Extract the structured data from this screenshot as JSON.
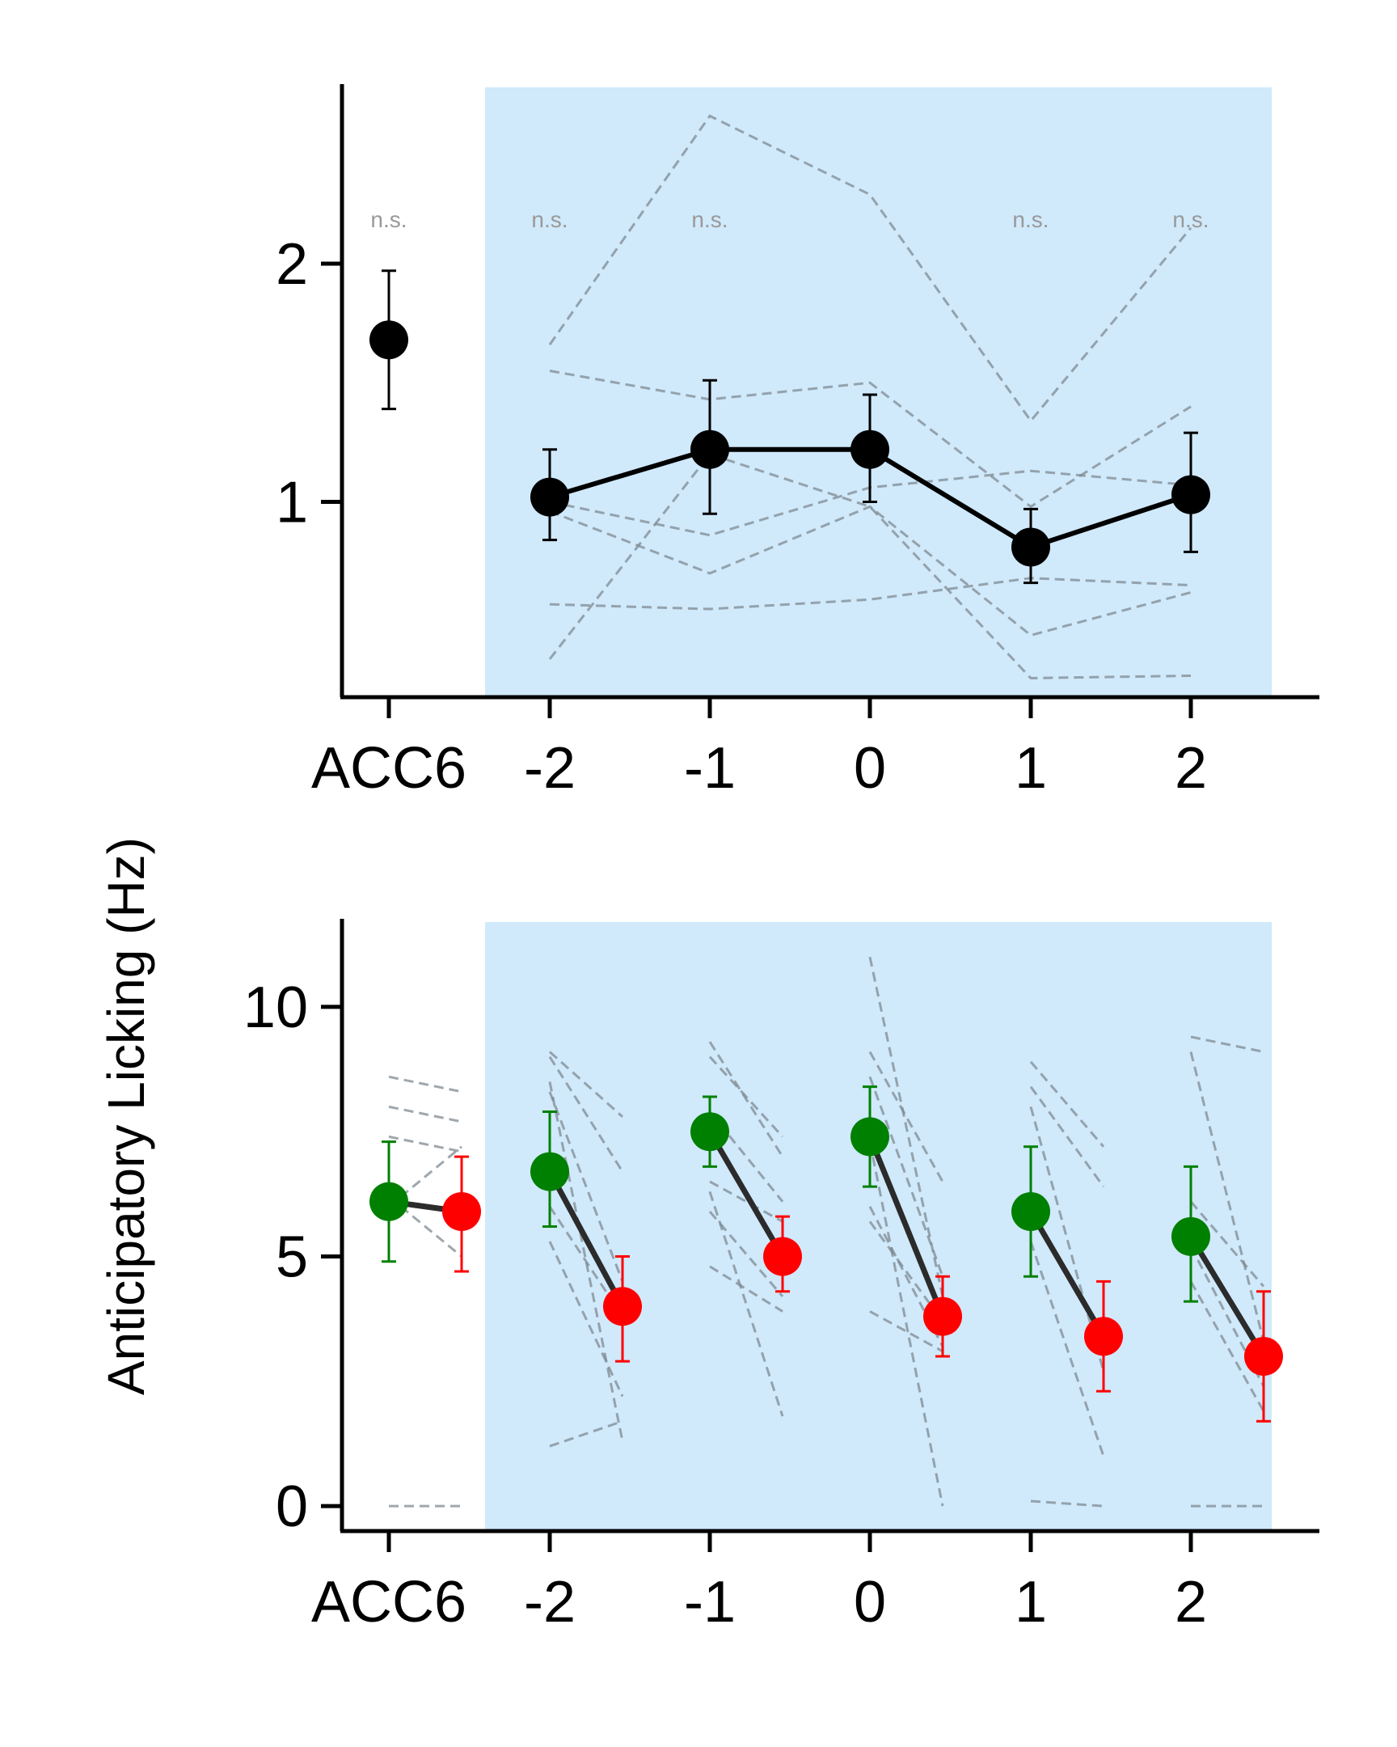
{
  "chart_data": [
    {
      "type": "line",
      "panel": "top",
      "x_tick_labels": [
        "ACC6",
        "-2",
        "-1",
        "0",
        "1",
        "2"
      ],
      "y_ticks": [
        1,
        2
      ],
      "ylim": [
        0.18,
        2.74
      ],
      "shaded_region_x": [
        "-2",
        "2"
      ],
      "shade_color": "#d0e9fb",
      "significance_labels": [
        {
          "x": "ACC6",
          "text": "n.s."
        },
        {
          "x": "-2",
          "text": "n.s."
        },
        {
          "x": "-1",
          "text": "n.s."
        },
        {
          "x": "1",
          "text": "n.s."
        },
        {
          "x": "2",
          "text": "n.s."
        }
      ],
      "baseline": {
        "x": "ACC6",
        "mean": 1.68,
        "err_low": 1.39,
        "err_high": 1.97
      },
      "mean_series": {
        "color": "#000000",
        "x": [
          "-2",
          "-1",
          "0",
          "1",
          "2"
        ],
        "mean": [
          1.02,
          1.22,
          1.22,
          0.81,
          1.03
        ],
        "err_low": [
          0.84,
          0.95,
          1.0,
          0.66,
          0.79
        ],
        "err_high": [
          1.22,
          1.51,
          1.45,
          0.97,
          1.29
        ]
      },
      "individual_series": [
        {
          "x": [
            "-2",
            "-1",
            "0",
            "1",
            "2"
          ],
          "values": [
            1.66,
            2.62,
            2.29,
            1.34,
            2.15
          ]
        },
        {
          "x": [
            "-2",
            "-1",
            "0",
            "1",
            "2"
          ],
          "values": [
            1.55,
            1.43,
            1.5,
            0.98,
            1.4
          ]
        },
        {
          "x": [
            "-2",
            "-1",
            "0",
            "1",
            "2"
          ],
          "values": [
            1.0,
            0.86,
            1.06,
            1.13,
            1.07
          ]
        },
        {
          "x": [
            "-2",
            "-1",
            "0",
            "1",
            "2"
          ],
          "values": [
            0.96,
            0.7,
            0.98,
            0.44,
            0.62
          ]
        },
        {
          "x": [
            "-2",
            "-1",
            "0",
            "1",
            "2"
          ],
          "values": [
            0.57,
            0.55,
            0.59,
            0.68,
            0.65
          ]
        },
        {
          "x": [
            "-2",
            "-1",
            "0",
            "1",
            "2"
          ],
          "values": [
            0.34,
            1.2,
            0.98,
            0.26,
            0.27
          ]
        }
      ]
    },
    {
      "type": "line",
      "panel": "bottom",
      "ylabel": "Anticipatory Licking (Hz)",
      "x_tick_labels": [
        "ACC6",
        "-2",
        "-1",
        "0",
        "1",
        "2"
      ],
      "y_ticks": [
        0,
        5,
        10
      ],
      "ylim": [
        -0.5,
        11.7
      ],
      "shaded_region_x": [
        "-2",
        "2"
      ],
      "shade_color": "#d0e9fb",
      "series": [
        {
          "color": "#008000",
          "x": [
            "ACC6",
            "-2",
            "-1",
            "0",
            "1",
            "2"
          ],
          "mean": [
            6.1,
            6.7,
            7.5,
            7.4,
            5.9,
            5.4
          ],
          "err_low": [
            4.9,
            5.6,
            6.8,
            6.4,
            4.6,
            4.1
          ],
          "err_high": [
            7.3,
            7.9,
            8.2,
            8.4,
            7.2,
            6.8
          ]
        },
        {
          "color": "#ff0000",
          "x": [
            "ACC6",
            "-2",
            "-1",
            "0",
            "1",
            "2"
          ],
          "mean": [
            5.9,
            4.0,
            5.0,
            3.8,
            3.4,
            3.0
          ],
          "err_low": [
            4.7,
            2.9,
            4.3,
            3.0,
            2.3,
            1.7
          ],
          "err_high": [
            7.0,
            5.0,
            5.8,
            4.6,
            4.5,
            4.3
          ]
        }
      ],
      "connector_color": "#2b2b2b",
      "individual_pairs": [
        {
          "x": "ACC6",
          "pairs": [
            [
              8.6,
              8.3
            ],
            [
              8.0,
              7.7
            ],
            [
              7.4,
              7.1
            ],
            [
              6.0,
              7.2
            ],
            [
              6.2,
              5.0
            ],
            [
              0.0,
              0.0
            ]
          ]
        },
        {
          "x": "-2",
          "pairs": [
            [
              9.1,
              7.8
            ],
            [
              9.0,
              6.7
            ],
            [
              8.3,
              4.5
            ],
            [
              6.0,
              3.8
            ],
            [
              5.3,
              2.2
            ],
            [
              8.5,
              1.3
            ],
            [
              1.2,
              1.7
            ]
          ]
        },
        {
          "x": "-1",
          "pairs": [
            [
              9.3,
              7.0
            ],
            [
              9.0,
              7.4
            ],
            [
              7.9,
              6.1
            ],
            [
              6.5,
              5.7
            ],
            [
              5.9,
              4.2
            ],
            [
              4.8,
              3.9
            ],
            [
              6.3,
              1.8
            ]
          ]
        },
        {
          "x": "0",
          "pairs": [
            [
              11.0,
              4.2
            ],
            [
              9.1,
              6.5
            ],
            [
              8.6,
              4.6
            ],
            [
              6.0,
              3.2
            ],
            [
              5.7,
              3.7
            ],
            [
              3.9,
              3.1
            ],
            [
              7.3,
              0.0
            ]
          ]
        },
        {
          "x": "1",
          "pairs": [
            [
              8.9,
              7.2
            ],
            [
              8.4,
              6.4
            ],
            [
              8.0,
              2.7
            ],
            [
              6.0,
              3.3
            ],
            [
              5.3,
              1.0
            ],
            [
              0.1,
              0.0
            ]
          ]
        },
        {
          "x": "2",
          "pairs": [
            [
              9.4,
              9.1
            ],
            [
              9.1,
              3.3
            ],
            [
              6.1,
              4.4
            ],
            [
              5.2,
              2.4
            ],
            [
              4.5,
              1.9
            ],
            [
              0.0,
              0.0
            ]
          ]
        }
      ]
    }
  ]
}
